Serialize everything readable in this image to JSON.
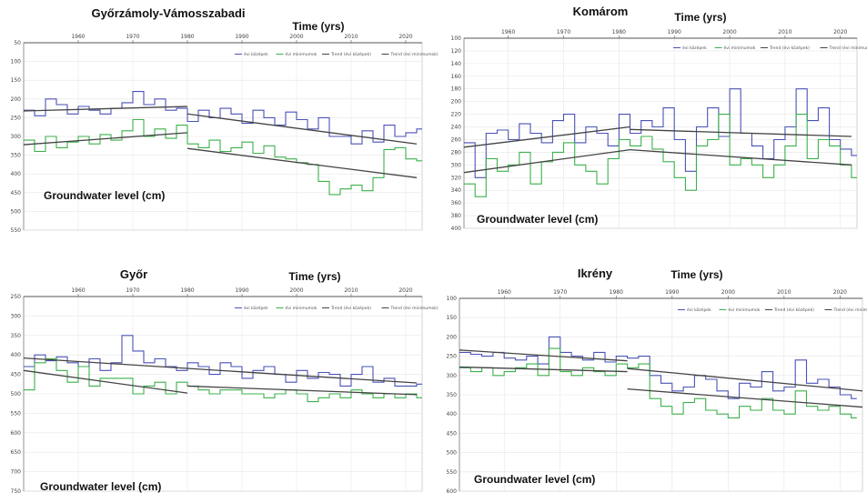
{
  "chart_data": [
    {
      "type": "line",
      "title": "Győrzámoly-Vámosszabadi",
      "xlabel": "Time (yrs)",
      "ylabel": "Groundwater level (cm)",
      "xlim": [
        1950,
        2023
      ],
      "ylim": [
        50,
        550
      ],
      "y_inverted": true,
      "x_ticks": [
        1960,
        1970,
        1980,
        1990,
        2000,
        2010,
        2020
      ],
      "y_ticks": [
        50,
        100,
        150,
        200,
        250,
        300,
        350,
        400,
        450,
        500,
        550
      ],
      "legend": [
        "évi középek",
        "évi minimumok",
        "Trend (évi középek)",
        "Trend (évi minimumok)"
      ],
      "legend_position": "top-right",
      "grid": true,
      "series": [
        {
          "kind": "mean",
          "color": "#4a52b5",
          "x": [
            1950,
            1952,
            1954,
            1956,
            1958,
            1960,
            1962,
            1964,
            1966,
            1968,
            1970,
            1972,
            1974,
            1976,
            1978,
            1980,
            1982,
            1984,
            1986,
            1988,
            1990,
            1992,
            1994,
            1996,
            1998,
            2000,
            2002,
            2004,
            2006,
            2008,
            2010,
            2012,
            2014,
            2016,
            2018,
            2020,
            2022
          ],
          "y": [
            230,
            245,
            200,
            215,
            240,
            220,
            230,
            240,
            225,
            210,
            180,
            215,
            200,
            230,
            225,
            260,
            230,
            250,
            225,
            240,
            265,
            230,
            250,
            270,
            235,
            255,
            280,
            250,
            300,
            300,
            320,
            285,
            315,
            270,
            300,
            290,
            280
          ]
        },
        {
          "kind": "min",
          "color": "#3cb14b",
          "x": [
            1950,
            1952,
            1954,
            1956,
            1958,
            1960,
            1962,
            1964,
            1966,
            1968,
            1970,
            1972,
            1974,
            1976,
            1978,
            1980,
            1982,
            1984,
            1986,
            1988,
            1990,
            1992,
            1994,
            1996,
            1998,
            2000,
            2002,
            2004,
            2006,
            2008,
            2010,
            2012,
            2014,
            2016,
            2018,
            2020,
            2022
          ],
          "y": [
            310,
            340,
            300,
            330,
            315,
            300,
            320,
            295,
            310,
            285,
            255,
            300,
            280,
            305,
            270,
            320,
            330,
            310,
            340,
            330,
            315,
            345,
            325,
            355,
            360,
            370,
            375,
            420,
            455,
            440,
            430,
            445,
            410,
            335,
            330,
            360,
            365
          ]
        },
        {
          "kind": "trend-mean",
          "color": "#444444",
          "x": [
            1950,
            1980
          ],
          "y": [
            232,
            220
          ]
        },
        {
          "kind": "trend-mean",
          "color": "#444444",
          "x": [
            1980,
            2022
          ],
          "y": [
            240,
            320
          ]
        },
        {
          "kind": "trend-min",
          "color": "#444444",
          "x": [
            1950,
            1980
          ],
          "y": [
            322,
            290
          ]
        },
        {
          "kind": "trend-min",
          "color": "#444444",
          "x": [
            1980,
            2022
          ],
          "y": [
            332,
            410
          ]
        }
      ]
    },
    {
      "type": "line",
      "title": "Komárom",
      "xlabel": "Time (yrs)",
      "ylabel": "Groundwater level (cm)",
      "xlim": [
        1952,
        2023
      ],
      "ylim": [
        100,
        400
      ],
      "y_inverted": true,
      "x_ticks": [
        1960,
        1970,
        1980,
        1990,
        2000,
        2010,
        2020
      ],
      "y_ticks": [
        100,
        120,
        140,
        160,
        180,
        200,
        220,
        240,
        260,
        280,
        300,
        320,
        340,
        360,
        380,
        400
      ],
      "legend": [
        "évi középek",
        "évi minimumok",
        "Trend (évi középek)",
        "Trend (évi minimumok)"
      ],
      "legend_position": "top-right",
      "grid": true,
      "series": [
        {
          "kind": "mean",
          "color": "#4a52b5",
          "x": [
            1952,
            1954,
            1956,
            1958,
            1960,
            1962,
            1964,
            1966,
            1968,
            1970,
            1972,
            1974,
            1976,
            1978,
            1980,
            1982,
            1984,
            1986,
            1988,
            1990,
            1992,
            1994,
            1996,
            1998,
            2000,
            2002,
            2004,
            2006,
            2008,
            2010,
            2012,
            2014,
            2016,
            2018,
            2020,
            2022
          ],
          "y": [
            265,
            320,
            250,
            245,
            260,
            235,
            250,
            265,
            230,
            220,
            265,
            240,
            250,
            270,
            220,
            250,
            230,
            240,
            210,
            260,
            310,
            240,
            210,
            255,
            180,
            250,
            270,
            290,
            260,
            240,
            180,
            230,
            210,
            260,
            275,
            285
          ]
        },
        {
          "kind": "min",
          "color": "#3cb14b",
          "x": [
            1952,
            1954,
            1956,
            1958,
            1960,
            1962,
            1964,
            1966,
            1968,
            1970,
            1972,
            1974,
            1976,
            1978,
            1980,
            1982,
            1984,
            1986,
            1988,
            1990,
            1992,
            1994,
            1996,
            1998,
            2000,
            2002,
            2004,
            2006,
            2008,
            2010,
            2012,
            2014,
            2016,
            2018,
            2020,
            2022
          ],
          "y": [
            330,
            350,
            290,
            310,
            300,
            280,
            330,
            295,
            280,
            265,
            300,
            310,
            330,
            290,
            260,
            270,
            255,
            275,
            295,
            320,
            340,
            270,
            260,
            220,
            300,
            290,
            300,
            320,
            300,
            270,
            220,
            290,
            260,
            270,
            300,
            320
          ]
        },
        {
          "kind": "trend-mean",
          "color": "#444444",
          "x": [
            1952,
            1982
          ],
          "y": [
            272,
            240
          ]
        },
        {
          "kind": "trend-mean",
          "color": "#444444",
          "x": [
            1982,
            2022
          ],
          "y": [
            244,
            255
          ]
        },
        {
          "kind": "trend-min",
          "color": "#444444",
          "x": [
            1952,
            1982
          ],
          "y": [
            312,
            276
          ]
        },
        {
          "kind": "trend-min",
          "color": "#444444",
          "x": [
            1982,
            2022
          ],
          "y": [
            276,
            300
          ]
        }
      ]
    },
    {
      "type": "line",
      "title": "Győr",
      "xlabel": "Time (yrs)",
      "ylabel": "Groundwater level (cm)",
      "xlim": [
        1950,
        2023
      ],
      "ylim": [
        250,
        750
      ],
      "y_inverted": true,
      "x_ticks": [
        1960,
        1970,
        1980,
        1990,
        2000,
        2010,
        2020
      ],
      "y_ticks": [
        250,
        300,
        350,
        400,
        450,
        500,
        550,
        600,
        650,
        700,
        750
      ],
      "legend": [
        "évi középek",
        "évi minimumok",
        "Trend (évi középek)",
        "Trend (évi minimumok)"
      ],
      "legend_position": "top-right",
      "grid": true,
      "series": [
        {
          "kind": "mean",
          "color": "#4a52b5",
          "x": [
            1950,
            1952,
            1954,
            1956,
            1958,
            1960,
            1962,
            1964,
            1966,
            1968,
            1970,
            1972,
            1974,
            1976,
            1978,
            1980,
            1982,
            1984,
            1986,
            1988,
            1990,
            1992,
            1994,
            1996,
            1998,
            2000,
            2002,
            2004,
            2006,
            2008,
            2010,
            2012,
            2014,
            2016,
            2018,
            2020,
            2022
          ],
          "y": [
            430,
            400,
            415,
            405,
            420,
            430,
            410,
            440,
            420,
            350,
            390,
            420,
            410,
            430,
            440,
            420,
            430,
            450,
            420,
            430,
            460,
            440,
            430,
            450,
            470,
            440,
            460,
            445,
            450,
            480,
            450,
            430,
            470,
            460,
            480,
            480,
            475
          ]
        },
        {
          "kind": "min",
          "color": "#3cb14b",
          "x": [
            1950,
            1952,
            1954,
            1956,
            1958,
            1960,
            1962,
            1964,
            1966,
            1968,
            1970,
            1972,
            1974,
            1976,
            1978,
            1980,
            1982,
            1984,
            1986,
            1988,
            1990,
            1992,
            1994,
            1996,
            1998,
            2000,
            2002,
            2004,
            2006,
            2008,
            2010,
            2012,
            2014,
            2016,
            2018,
            2020,
            2022
          ],
          "y": [
            490,
            420,
            410,
            440,
            470,
            430,
            480,
            460,
            460,
            460,
            500,
            480,
            470,
            500,
            470,
            480,
            490,
            500,
            490,
            490,
            500,
            500,
            510,
            500,
            490,
            500,
            520,
            510,
            500,
            510,
            490,
            500,
            510,
            500,
            510,
            500,
            510
          ]
        },
        {
          "kind": "trend-mean",
          "color": "#444444",
          "x": [
            1950,
            2022
          ],
          "y": [
            408,
            472
          ]
        },
        {
          "kind": "trend-min",
          "color": "#444444",
          "x": [
            1950,
            1980
          ],
          "y": [
            440,
            498
          ]
        },
        {
          "kind": "trend-min",
          "color": "#444444",
          "x": [
            1980,
            2022
          ],
          "y": [
            480,
            502
          ]
        }
      ]
    },
    {
      "type": "line",
      "title": "Ikrény",
      "xlabel": "Time (yrs)",
      "ylabel": "Groundwater level (cm)",
      "xlim": [
        1952,
        2024
      ],
      "ylim": [
        100,
        600
      ],
      "y_inverted": true,
      "x_ticks": [
        1960,
        1970,
        1980,
        1990,
        2000,
        2010,
        2020
      ],
      "y_ticks": [
        100,
        150,
        200,
        250,
        300,
        350,
        400,
        450,
        500,
        550,
        600
      ],
      "legend": [
        "évi középek",
        "évi minimumok",
        "Trend (évi középek)",
        "Trend (évi minimumok)"
      ],
      "legend_position": "top-right",
      "grid": true,
      "series": [
        {
          "kind": "mean",
          "color": "#4a52b5",
          "x": [
            1952,
            1954,
            1956,
            1958,
            1960,
            1962,
            1964,
            1966,
            1968,
            1970,
            1972,
            1974,
            1976,
            1978,
            1980,
            1982,
            1984,
            1986,
            1988,
            1990,
            1992,
            1994,
            1996,
            1998,
            2000,
            2002,
            2004,
            2006,
            2008,
            2010,
            2012,
            2014,
            2016,
            2018,
            2020,
            2022
          ],
          "y": [
            240,
            245,
            250,
            240,
            255,
            260,
            250,
            270,
            200,
            240,
            250,
            260,
            240,
            265,
            250,
            255,
            250,
            300,
            320,
            340,
            330,
            300,
            310,
            340,
            360,
            320,
            330,
            290,
            340,
            330,
            260,
            320,
            310,
            330,
            350,
            360
          ]
        },
        {
          "kind": "min",
          "color": "#3cb14b",
          "x": [
            1952,
            1954,
            1956,
            1958,
            1960,
            1962,
            1964,
            1966,
            1968,
            1970,
            1972,
            1974,
            1976,
            1978,
            1980,
            1982,
            1984,
            1986,
            1988,
            1990,
            1992,
            1994,
            1996,
            1998,
            2000,
            2002,
            2004,
            2006,
            2008,
            2010,
            2012,
            2014,
            2016,
            2018,
            2020,
            2022
          ],
          "y": [
            280,
            290,
            280,
            300,
            290,
            280,
            270,
            300,
            230,
            290,
            300,
            280,
            290,
            300,
            270,
            280,
            270,
            360,
            380,
            400,
            370,
            360,
            390,
            400,
            410,
            380,
            390,
            360,
            390,
            400,
            340,
            380,
            390,
            380,
            400,
            410
          ]
        },
        {
          "kind": "trend-mean",
          "color": "#444444",
          "x": [
            1952,
            1982
          ],
          "y": [
            234,
            262
          ]
        },
        {
          "kind": "trend-mean",
          "color": "#444444",
          "x": [
            1982,
            2024
          ],
          "y": [
            282,
            340
          ]
        },
        {
          "kind": "trend-min",
          "color": "#444444",
          "x": [
            1952,
            1982
          ],
          "y": [
            278,
            290
          ]
        },
        {
          "kind": "trend-min",
          "color": "#444444",
          "x": [
            1982,
            2024
          ],
          "y": [
            335,
            382
          ]
        }
      ]
    }
  ]
}
